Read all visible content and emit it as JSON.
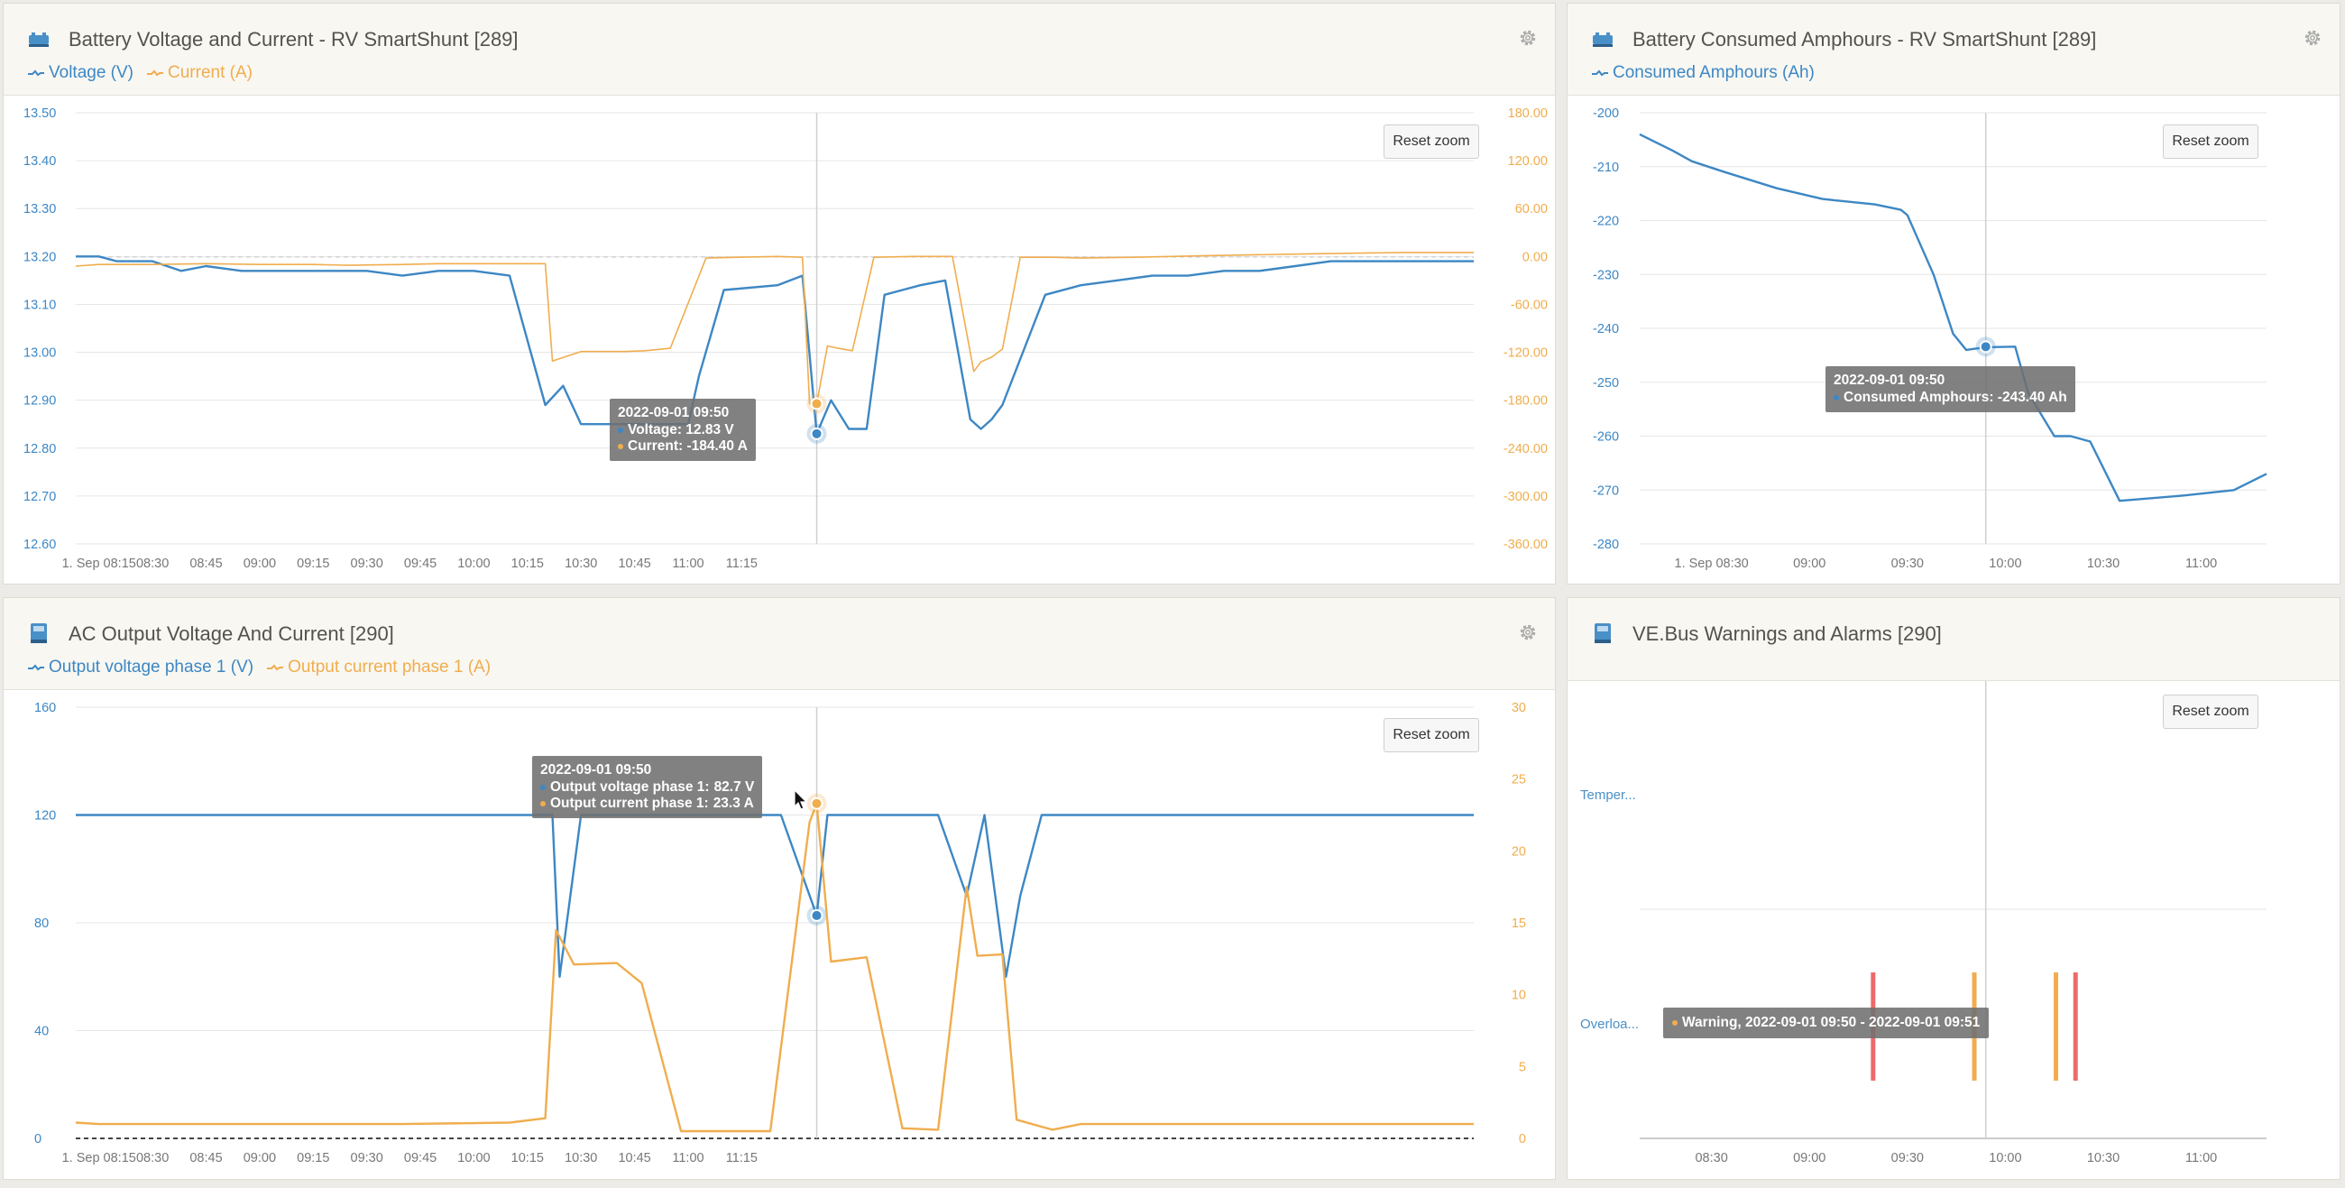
{
  "colors": {
    "voltage": "#3d87c4",
    "current": "#f0ad4e",
    "warning": "#f0ad4e",
    "alarm": "#ee6a6a",
    "grid": "#e6e6e6",
    "axis_text": "#777777"
  },
  "panel1": {
    "title": "Battery Voltage and Current - RV SmartShunt [289]",
    "icon": "battery-shunt-icon",
    "legend": [
      "Voltage (V)",
      "Current (A)"
    ],
    "reset": "Reset zoom",
    "yleft_ticks": [
      "13.50",
      "13.40",
      "13.30",
      "13.20",
      "13.10",
      "13.00",
      "12.90",
      "12.80",
      "12.70",
      "12.60"
    ],
    "yright_ticks": [
      "180.00",
      "120.00",
      "60.00",
      "0.00",
      "-60.00",
      "-120.00",
      "-180.00",
      "-240.00",
      "-300.00",
      "-360.00"
    ],
    "x_ticks": [
      "1. Sep 08:15",
      "08:30",
      "08:45",
      "09:00",
      "09:15",
      "09:30",
      "09:45",
      "10:00",
      "10:15",
      "10:30",
      "10:45",
      "11:00",
      "11:15"
    ],
    "tooltip": {
      "title": "2022-09-01 09:50",
      "line1": "Voltage: 12.83 V",
      "line2": "Current: -184.40 A"
    }
  },
  "panel2": {
    "title": "Battery Consumed Amphours - RV SmartShunt [289]",
    "icon": "battery-shunt-icon",
    "legend": [
      "Consumed Amphours (Ah)"
    ],
    "reset": "Reset zoom",
    "yleft_ticks": [
      "-200",
      "-210",
      "-220",
      "-230",
      "-240",
      "-250",
      "-260",
      "-270",
      "-280"
    ],
    "x_ticks": [
      "1. Sep 08:30",
      "09:00",
      "09:30",
      "10:00",
      "10:30",
      "11:00"
    ],
    "tooltip": {
      "title": "2022-09-01 09:50",
      "line1": "Consumed Amphours: -243.40 Ah"
    }
  },
  "panel3": {
    "title": "AC Output Voltage And Current [290]",
    "icon": "inverter-icon",
    "legend": [
      "Output voltage phase 1 (V)",
      "Output current phase 1 (A)"
    ],
    "reset": "Reset zoom",
    "yleft_ticks": [
      "160",
      "120",
      "80",
      "40",
      "0"
    ],
    "yright_ticks": [
      "30",
      "25",
      "20",
      "15",
      "10",
      "5",
      "0"
    ],
    "x_ticks": [
      "1. Sep 08:15",
      "08:30",
      "08:45",
      "09:00",
      "09:15",
      "09:30",
      "09:45",
      "10:00",
      "10:15",
      "10:30",
      "10:45",
      "11:00",
      "11:15"
    ],
    "tooltip": {
      "title": "2022-09-01 09:50",
      "line1_label": "Output voltage phase 1: ",
      "line1_value": "82.7 V",
      "line2_label": "Output current phase 1: ",
      "line2_value": "23.3 A"
    }
  },
  "panel4": {
    "title": "VE.Bus Warnings and Alarms [290]",
    "icon": "inverter-icon",
    "reset": "Reset zoom",
    "categories": [
      "Temper...",
      "Overloa..."
    ],
    "x_ticks": [
      "08:30",
      "09:00",
      "09:30",
      "10:00",
      "10:30",
      "11:00"
    ],
    "tooltip": {
      "text": "Warning, 2022-09-01 09:50 - 2022-09-01 09:51"
    }
  },
  "chart_data": [
    {
      "type": "line",
      "title": "Battery Voltage and Current - RV SmartShunt [289]",
      "x_unit": "minutes after 1 Sep 08:00",
      "series": [
        {
          "name": "Voltage (V)",
          "axis": "left",
          "ylim": [
            12.6,
            13.5
          ],
          "x": [
            8.5,
            15,
            20,
            30,
            38,
            45,
            55,
            72,
            90,
            100,
            110,
            120,
            130,
            140,
            145,
            150,
            152,
            155,
            160,
            165,
            170,
            178,
            180,
            183,
            190,
            205,
            212,
            216,
            220,
            225,
            230,
            235,
            240,
            245,
            252,
            259,
            262,
            265,
            268,
            280,
            290,
            300,
            310,
            320,
            330,
            340,
            350,
            360,
            370,
            380,
            390,
            400
          ],
          "values": [
            13.2,
            13.2,
            13.19,
            13.19,
            13.17,
            13.18,
            13.17,
            13.17,
            13.17,
            13.16,
            13.17,
            13.17,
            13.16,
            12.89,
            12.93,
            12.85,
            12.85,
            12.85,
            12.85,
            12.85,
            12.85,
            12.85,
            12.85,
            12.95,
            13.13,
            13.14,
            13.16,
            12.83,
            12.9,
            12.84,
            12.84,
            13.12,
            13.13,
            13.14,
            13.15,
            12.86,
            12.84,
            12.86,
            12.89,
            13.12,
            13.14,
            13.15,
            13.16,
            13.16,
            13.17,
            13.17,
            13.18,
            13.19,
            13.19,
            13.19,
            13.19,
            13.19
          ]
        },
        {
          "name": "Current (A)",
          "axis": "right",
          "ylim": [
            -360,
            180
          ],
          "x": [
            8.5,
            15,
            30,
            45,
            60,
            75,
            85,
            100,
            110,
            120,
            130,
            140,
            142,
            150,
            155,
            162,
            168,
            175,
            185,
            194,
            205,
            212,
            214,
            216,
            219,
            222,
            226,
            232,
            243,
            254,
            260,
            262,
            265,
            268,
            273,
            282,
            290,
            305,
            325,
            350,
            380,
            400
          ],
          "values": [
            -12,
            -10,
            -10,
            -9,
            -10,
            -10,
            -11,
            -10,
            -9,
            -9,
            -9,
            -9,
            -131,
            -119,
            -119,
            -119,
            -118,
            -115,
            -2,
            -1,
            0,
            -1,
            -184.4,
            -184.4,
            -112,
            -115,
            -118,
            -1,
            0,
            0,
            -144,
            -132,
            -126,
            -116,
            -1,
            -1,
            -2,
            -1,
            1,
            3,
            5,
            5
          ]
        }
      ],
      "yleft_ticks": [
        "13.50",
        "13.40",
        "13.30",
        "13.20",
        "13.10",
        "13.00",
        "12.90",
        "12.80",
        "12.70",
        "12.60"
      ],
      "yright_ticks": [
        "180.00",
        "120.00",
        "60.00",
        "0.00",
        "-60.00",
        "-120.00",
        "-180.00",
        "-240.00",
        "-300.00",
        "-360.00"
      ],
      "x_ticks": [
        "1. Sep 08:15",
        "08:30",
        "08:45",
        "09:00",
        "09:15",
        "09:30",
        "09:45",
        "10:00",
        "10:15",
        "10:30",
        "10:45",
        "11:00",
        "11:15"
      ]
    },
    {
      "type": "line",
      "title": "Battery Consumed Amphours - RV SmartShunt [289]",
      "x_unit": "minutes after 1 Sep 08:00",
      "series": [
        {
          "name": "Consumed Amphours (Ah)",
          "ylim": [
            -280,
            -200
          ],
          "x": [
            8,
            18,
            24,
            34,
            50,
            64,
            80,
            88,
            90,
            98,
            104,
            108,
            114,
            123,
            127,
            135,
            137,
            140,
            146,
            155,
            175,
            190,
            200
          ],
          "values": [
            -204,
            -207,
            -209,
            -211,
            -214,
            -216,
            -217,
            -218,
            -219,
            -230,
            -241,
            -244,
            -243.5,
            -243.4,
            -252,
            -260,
            -260,
            -260,
            -261,
            -272,
            -271,
            -270,
            -267
          ]
        }
      ],
      "y_ticks": [
        "-200",
        "-210",
        "-220",
        "-230",
        "-240",
        "-250",
        "-260",
        "-270",
        "-280"
      ],
      "x_ticks": [
        "1. Sep 08:30",
        "09:00",
        "09:30",
        "10:00",
        "10:30",
        "11:00"
      ]
    },
    {
      "type": "line",
      "title": "AC Output Voltage And Current [290]",
      "x_unit": "minutes after 1 Sep 08:00",
      "series": [
        {
          "name": "Output voltage phase 1 (V)",
          "axis": "left",
          "ylim": [
            0,
            160
          ],
          "x": [
            8.5,
            50,
            100,
            140,
            142,
            144,
            150,
            178,
            206,
            216,
            219,
            222,
            230,
            250,
            258,
            263,
            269,
            273,
            279,
            283,
            290,
            350,
            400
          ],
          "values": [
            120,
            120,
            120,
            120,
            120,
            60,
            120,
            120,
            120,
            82.7,
            120,
            120,
            120,
            120,
            90,
            120,
            60,
            90,
            120,
            120,
            120,
            120,
            120
          ]
        },
        {
          "name": "Output current phase 1 (A)",
          "axis": "right",
          "ylim": [
            0,
            30
          ],
          "x": [
            8.5,
            15,
            40,
            60,
            70,
            100,
            130,
            140,
            143,
            148,
            160,
            167,
            178,
            185,
            203,
            214,
            216,
            220,
            230,
            240,
            250,
            258,
            261,
            268,
            272,
            282,
            290,
            300,
            330,
            370,
            400
          ],
          "values": [
            1.1,
            1,
            1,
            1,
            1,
            1,
            1.1,
            1.4,
            14.5,
            12.1,
            12.2,
            10.8,
            0.5,
            0.5,
            0.5,
            22,
            23.3,
            12.3,
            12.6,
            0.7,
            0.6,
            17.5,
            12.7,
            12.8,
            1.3,
            0.6,
            1,
            1,
            1,
            1,
            1
          ]
        }
      ],
      "yleft_ticks": [
        "160",
        "120",
        "80",
        "40",
        "0"
      ],
      "yright_ticks": [
        "30",
        "25",
        "20",
        "15",
        "10",
        "5",
        "0"
      ],
      "x_ticks": [
        "1. Sep 08:15",
        "08:30",
        "08:45",
        "09:00",
        "09:15",
        "09:30",
        "09:45",
        "10:00",
        "10:15",
        "10:30",
        "10:45",
        "11:00",
        "11:15"
      ]
    },
    {
      "type": "timeline",
      "title": "VE.Bus Warnings and Alarms [290]",
      "categories": [
        "Temper...",
        "Overloa..."
      ],
      "events": [
        {
          "category": "Overloa...",
          "level": "alarm",
          "start": "09:19",
          "end": "09:20"
        },
        {
          "category": "Overloa...",
          "level": "warning",
          "start": "09:50",
          "end": "09:51"
        },
        {
          "category": "Overloa...",
          "level": "warning",
          "start": "10:15",
          "end": "10:16"
        },
        {
          "category": "Overloa...",
          "level": "alarm",
          "start": "10:21",
          "end": "10:22"
        }
      ],
      "x_ticks": [
        "08:30",
        "09:00",
        "09:30",
        "10:00",
        "10:30",
        "11:00"
      ]
    }
  ]
}
